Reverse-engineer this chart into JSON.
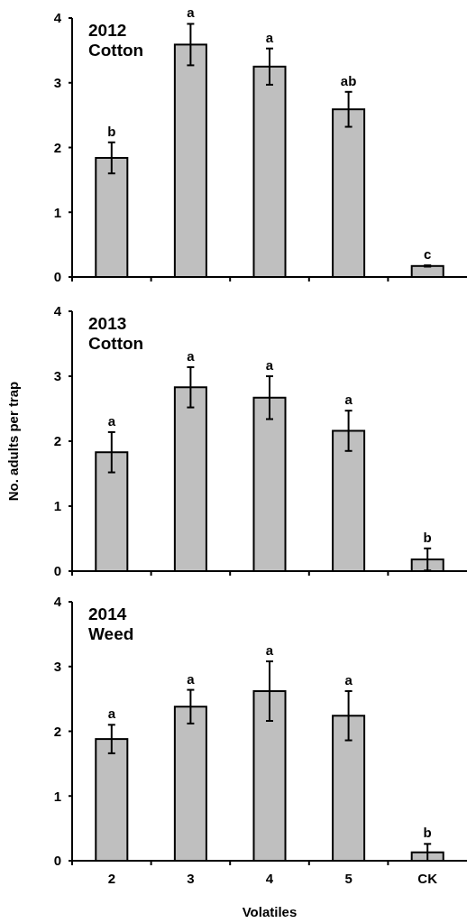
{
  "chart_data": [
    {
      "type": "bar",
      "title": "2012\nCotton",
      "categories": [
        "2",
        "3",
        "4",
        "5",
        "CK"
      ],
      "color": "#bfbfbf",
      "values": [
        1.84,
        3.59,
        3.25,
        2.59,
        0.17
      ],
      "errors": [
        0.24,
        0.32,
        0.28,
        0.27,
        0.01
      ],
      "ylim": [
        0,
        4
      ],
      "yticks": [
        0,
        1,
        2,
        3,
        4
      ],
      "tick_labels": "y",
      "annotations": [
        {
          "text": "b",
          "x": "2",
          "y": 2.08
        },
        {
          "text": "a",
          "x": "3",
          "y": 3.91
        },
        {
          "text": "a",
          "x": "4",
          "y": 3.53
        },
        {
          "text": "ab",
          "x": "5",
          "y": 2.86
        },
        {
          "text": "c",
          "x": "CK",
          "y": 0.18
        }
      ]
    },
    {
      "type": "bar",
      "title": "2013\nCotton",
      "ylabel": "No. adults per trap",
      "categories": [
        "2",
        "3",
        "4",
        "5",
        "CK"
      ],
      "color": "#bfbfbf",
      "values": [
        1.83,
        2.83,
        2.67,
        2.16,
        0.18
      ],
      "errors": [
        0.31,
        0.31,
        0.33,
        0.31,
        0.17
      ],
      "ylim": [
        0,
        4
      ],
      "yticks": [
        0,
        1,
        2,
        3,
        4
      ],
      "tick_labels": "y",
      "annotations": [
        {
          "text": "a",
          "x": "2",
          "y": 2.14
        },
        {
          "text": "a",
          "x": "3",
          "y": 3.14
        },
        {
          "text": "a",
          "x": "4",
          "y": 3.0
        },
        {
          "text": "a",
          "x": "5",
          "y": 2.47
        },
        {
          "text": "b",
          "x": "CK",
          "y": 0.35
        }
      ]
    },
    {
      "type": "bar",
      "title": "2014\nWeed",
      "xlabel": "Volatiles",
      "categories": [
        "2",
        "3",
        "4",
        "5",
        "CK"
      ],
      "color": "#bfbfbf",
      "values": [
        1.88,
        2.38,
        2.62,
        2.24,
        0.13
      ],
      "errors": [
        0.22,
        0.26,
        0.46,
        0.38,
        0.13
      ],
      "ylim": [
        0,
        4
      ],
      "yticks": [
        0,
        1,
        2,
        3,
        4
      ],
      "annotations": [
        {
          "text": "a",
          "x": "2",
          "y": 2.1
        },
        {
          "text": "a",
          "x": "3",
          "y": 2.64
        },
        {
          "text": "a",
          "x": "4",
          "y": 3.08
        },
        {
          "text": "a",
          "x": "5",
          "y": 2.62
        },
        {
          "text": "b",
          "x": "CK",
          "y": 0.26
        }
      ]
    }
  ]
}
